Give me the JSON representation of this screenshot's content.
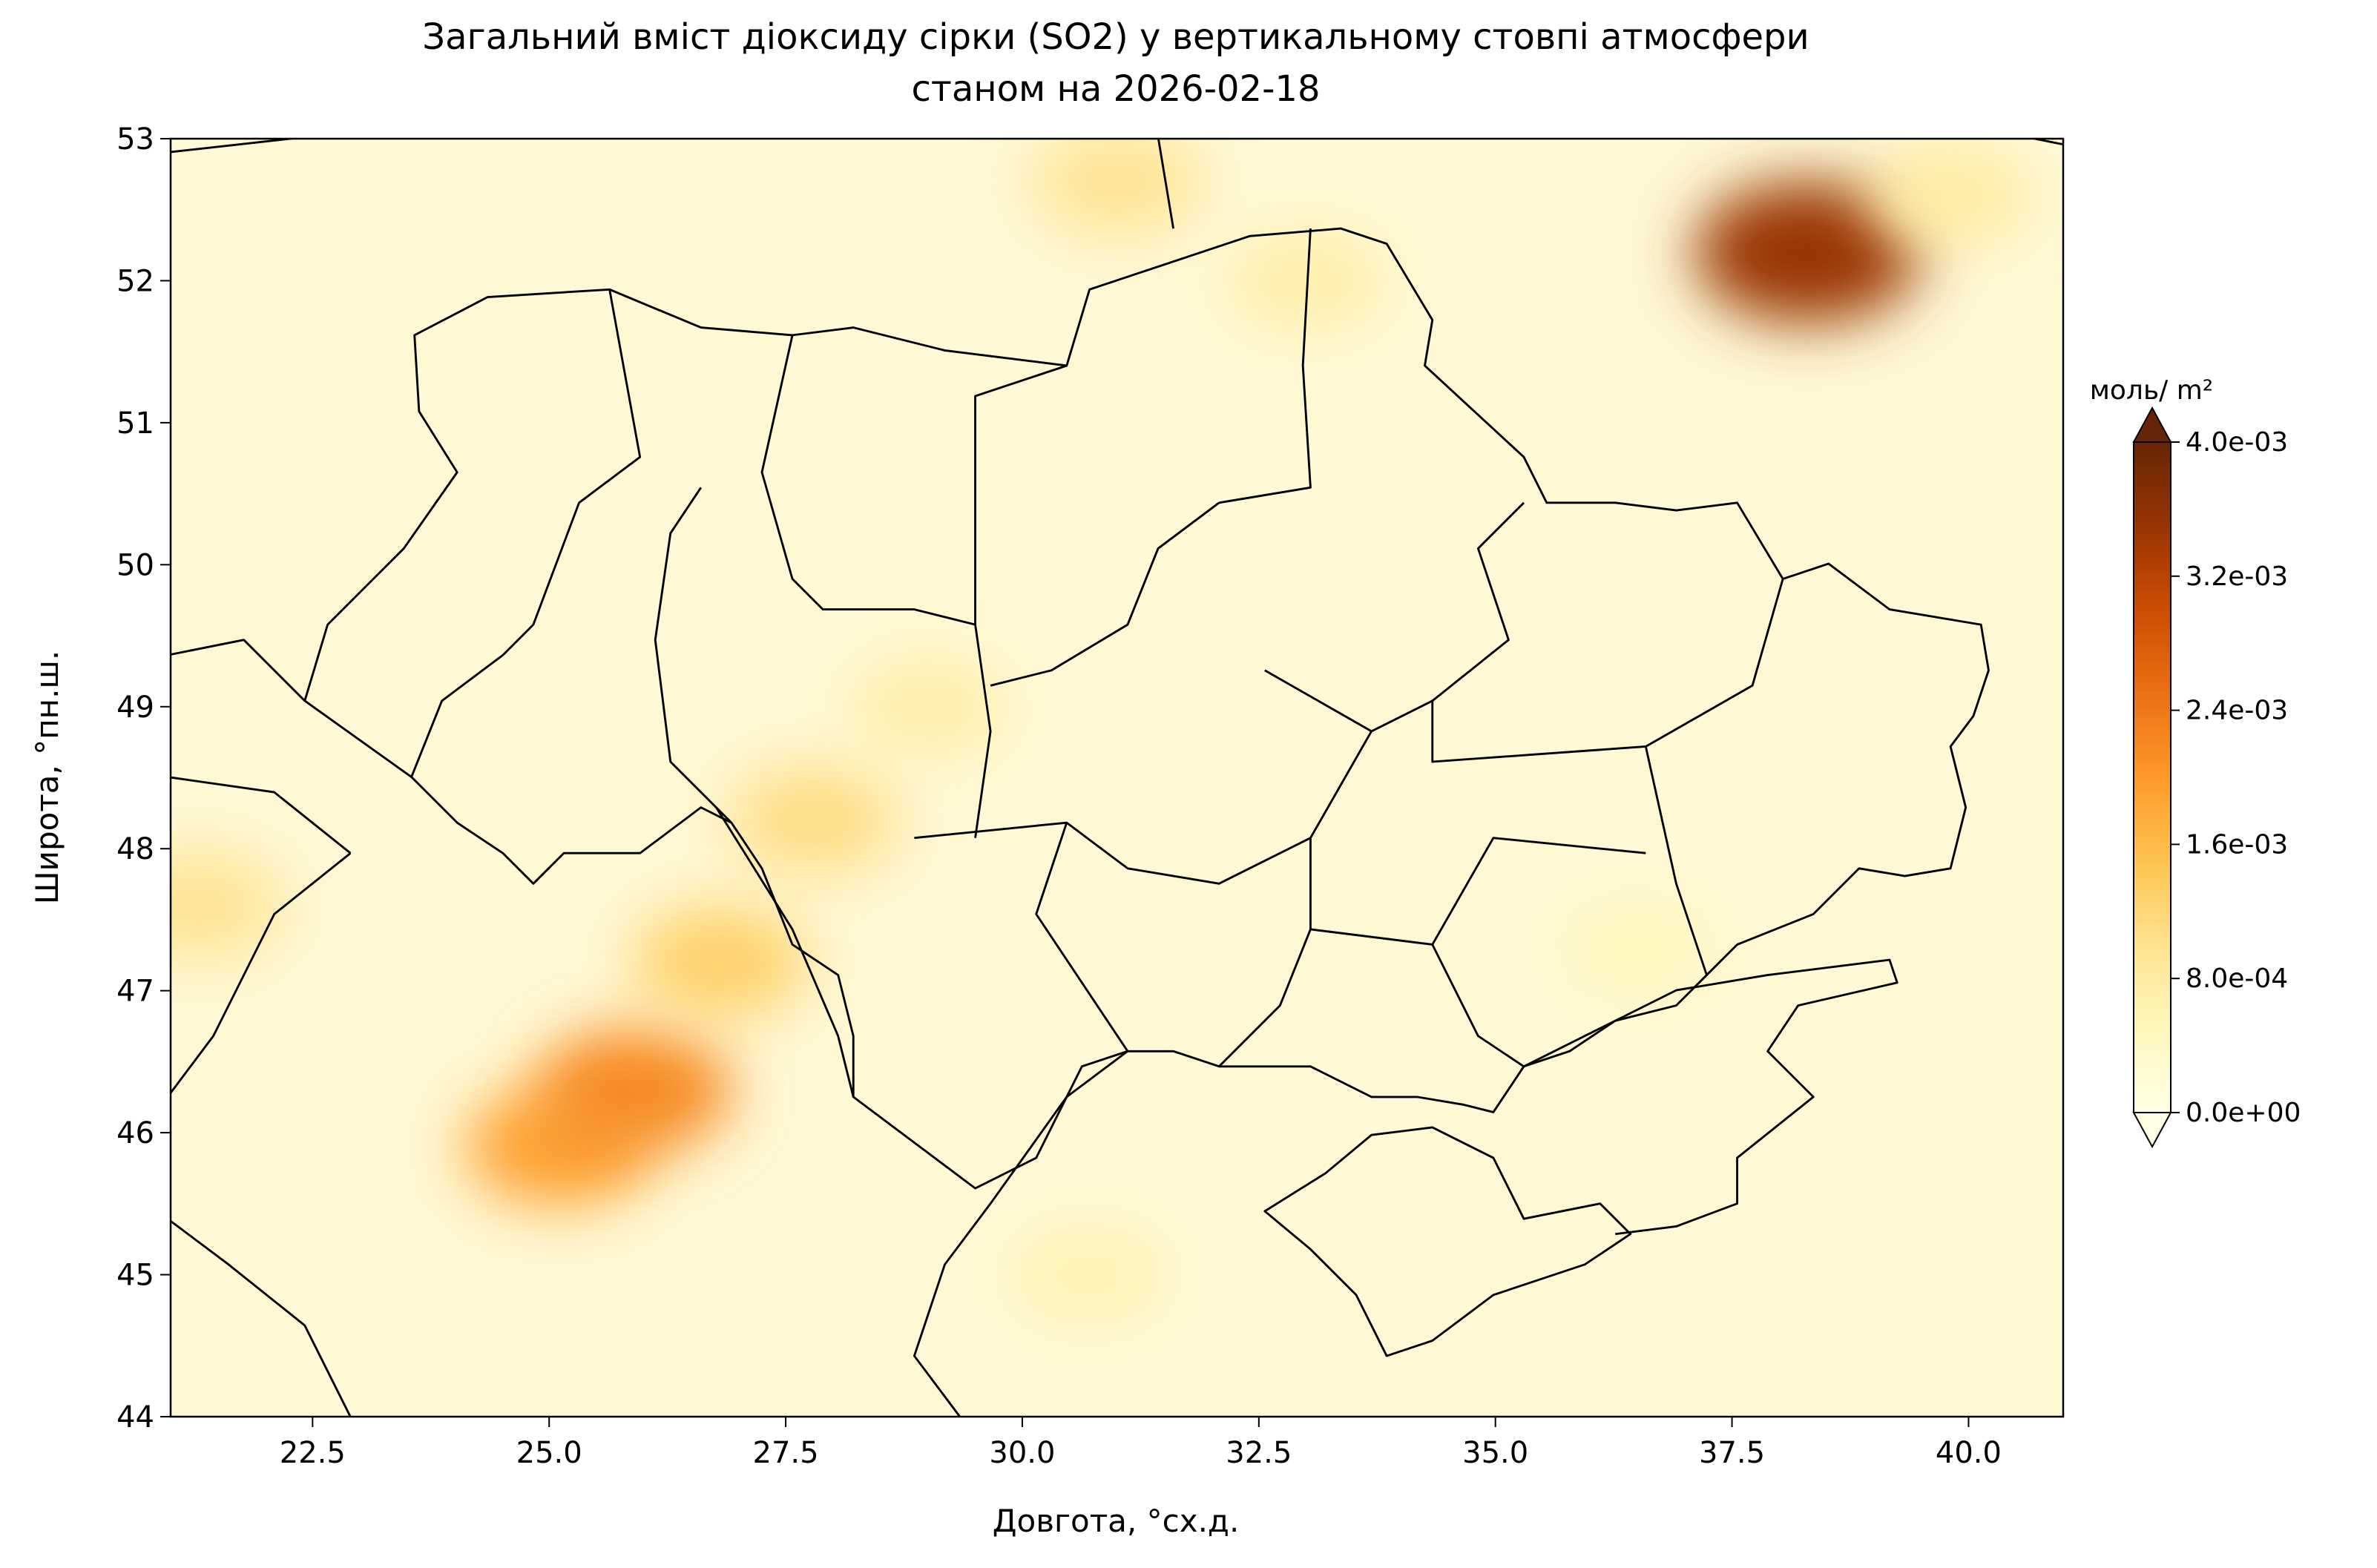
{
  "chart_data": {
    "type": "contour-map",
    "title": "Загальний вміст діоксиду сірки (SO2) у вертикальному стовпі атмосфери",
    "subtitle": "станом на 2026-02-18",
    "xlabel": "Довгота, °сх.д.",
    "ylabel": "Широта, °пн.ш.",
    "xlim": [
      21,
      41
    ],
    "ylim": [
      44,
      53
    ],
    "xticks": [
      22.5,
      {
        "value": 25,
        "label": "25.0"
      },
      27.5,
      {
        "value": 30,
        "label": "30.0"
      },
      32.5,
      {
        "value": 35,
        "label": "35.0"
      },
      37.5,
      {
        "value": 40,
        "label": "40.0"
      }
    ],
    "yticks": [
      44,
      45,
      46,
      47,
      48,
      49,
      50,
      51,
      52,
      53
    ],
    "colorbar_label": "моль/ m²",
    "clim": [
      0,
      0.004
    ],
    "cticks": [
      {
        "value": 0,
        "label": "0.0e+00"
      },
      {
        "value": 0.0008,
        "label": "8.0e-04"
      },
      {
        "value": 0.0016,
        "label": "1.6e-03"
      },
      {
        "value": 0.0024,
        "label": "2.4e-03"
      },
      {
        "value": 0.0032,
        "label": "3.2e-03"
      },
      {
        "value": 0.004,
        "label": "4.0e-03"
      }
    ],
    "colormap": [
      "#ffffe5",
      "#fff7bc",
      "#fee391",
      "#fec44f",
      "#fe9929",
      "#ec7014",
      "#cc4c02",
      "#993404",
      "#662506"
    ],
    "x": [
      38.3,
      25.1,
      25.9,
      26.8,
      31.0,
      27.8,
      21.3,
      29.0,
      39.8,
      30.7,
      36.5,
      33.0
    ],
    "y": [
      52.2,
      45.9,
      46.3,
      47.2,
      52.7,
      48.2,
      47.6,
      49.0,
      52.6,
      45.0,
      47.3,
      52.0
    ],
    "values": [
      0.0035,
      0.0019,
      0.0022,
      0.0013,
      0.001,
      0.0011,
      0.001,
      0.0007,
      0.0008,
      0.0006,
      0.0005,
      0.0007
    ]
  }
}
